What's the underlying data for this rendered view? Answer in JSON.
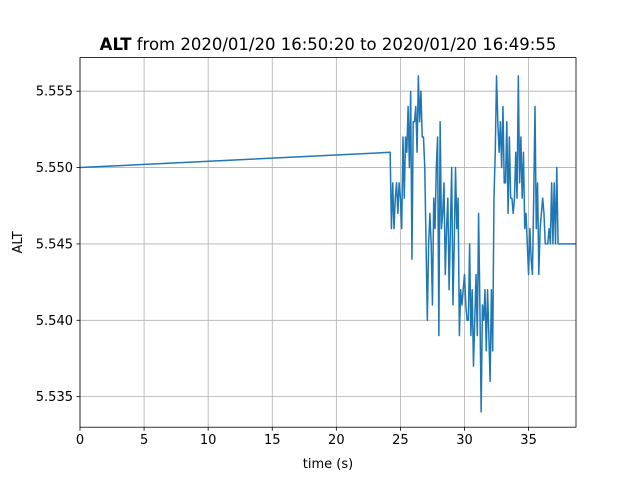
{
  "chart_data": {
    "type": "line",
    "title_bold": "ALT",
    "title_rest": " from 2020/01/20 16:50:20 to 2020/01/20 16:49:55",
    "xlabel": "time (s)",
    "ylabel": "ALT",
    "xlim": [
      0,
      38.7
    ],
    "ylim": [
      5.533,
      5.5572
    ],
    "xticks": [
      0,
      5,
      10,
      15,
      20,
      25,
      30,
      35
    ],
    "xtick_labels": [
      "0",
      "5",
      "10",
      "15",
      "20",
      "25",
      "30",
      "35"
    ],
    "yticks": [
      5.535,
      5.54,
      5.545,
      5.55,
      5.555
    ],
    "ytick_labels": [
      "5.535",
      "5.540",
      "5.545",
      "5.550",
      "5.555"
    ],
    "grid": true,
    "line_color": "#1f77b4",
    "series": [
      {
        "x": [
          0,
          24.2,
          24.3,
          24.4,
          24.5,
          24.6,
          24.7,
          24.8,
          24.9,
          25.0,
          25.1,
          25.2,
          25.3,
          25.4,
          25.5,
          25.6,
          25.7,
          25.8,
          25.9,
          26.0,
          26.1,
          26.2,
          26.3,
          26.4,
          26.5,
          26.6,
          26.7,
          26.8,
          26.9,
          27.0,
          27.1,
          27.2,
          27.3,
          27.4,
          27.5,
          27.6,
          27.7,
          27.8,
          27.9,
          28.0,
          28.1,
          28.2,
          28.3,
          28.4,
          28.5,
          28.6,
          28.7,
          28.8,
          28.9,
          29.0,
          29.1,
          29.2,
          29.3,
          29.4,
          29.5,
          29.6,
          29.7,
          29.8,
          29.9,
          30.0,
          30.1,
          30.2,
          30.3,
          30.4,
          30.5,
          30.6,
          30.7,
          30.8,
          30.9,
          31.0,
          31.1,
          31.2,
          31.3,
          31.4,
          31.5,
          31.6,
          31.7,
          31.8,
          31.9,
          32.0,
          32.1,
          32.2,
          32.3,
          32.4,
          32.5,
          32.6,
          32.7,
          32.8,
          32.9,
          33.0,
          33.1,
          33.2,
          33.3,
          33.4,
          33.5,
          33.6,
          33.7,
          33.8,
          33.9,
          34.0,
          34.1,
          34.2,
          34.3,
          34.4,
          34.5,
          34.6,
          34.7,
          34.8,
          34.9,
          35.0,
          35.1,
          35.2,
          35.3,
          35.4,
          35.5,
          35.6,
          35.7,
          35.8,
          35.9,
          36.0,
          36.1,
          36.2,
          36.3,
          36.4,
          36.5,
          36.6,
          36.7,
          36.8,
          36.9,
          37.0,
          37.1,
          37.2,
          37.3,
          37.4,
          37.5,
          37.6,
          37.7,
          37.8,
          37.9,
          38.0,
          38.1,
          38.2,
          38.3,
          38.4,
          38.5,
          38.6,
          38.7
        ],
        "y": [
          5.55,
          5.551,
          5.546,
          5.549,
          5.546,
          5.548,
          5.549,
          5.547,
          5.549,
          5.548,
          5.546,
          5.552,
          5.548,
          5.552,
          5.551,
          5.554,
          5.55,
          5.555,
          5.544,
          5.553,
          5.553,
          5.554,
          5.551,
          5.556,
          5.553,
          5.555,
          5.552,
          5.552,
          5.55,
          5.545,
          5.54,
          5.545,
          5.547,
          5.545,
          5.541,
          5.548,
          5.546,
          5.55,
          5.552,
          5.539,
          5.553,
          5.546,
          5.547,
          5.549,
          5.543,
          5.546,
          5.548,
          5.542,
          5.546,
          5.55,
          5.541,
          5.545,
          5.55,
          5.546,
          5.548,
          5.539,
          5.542,
          5.541,
          5.542,
          5.543,
          5.541,
          5.54,
          5.54,
          5.545,
          5.539,
          5.542,
          5.537,
          5.54,
          5.543,
          5.539,
          5.547,
          5.541,
          5.534,
          5.541,
          5.54,
          5.542,
          5.538,
          5.542,
          5.539,
          5.536,
          5.542,
          5.538,
          5.548,
          5.551,
          5.556,
          5.553,
          5.551,
          5.553,
          5.55,
          5.554,
          5.549,
          5.549,
          5.553,
          5.547,
          5.552,
          5.548,
          5.548,
          5.547,
          5.548,
          5.551,
          5.548,
          5.556,
          5.549,
          5.552,
          5.548,
          5.551,
          5.546,
          5.547,
          5.545,
          5.543,
          5.546,
          5.544,
          5.543,
          5.548,
          5.554,
          5.546,
          5.549,
          5.543,
          5.546,
          5.547,
          5.548,
          5.547,
          5.545,
          5.545,
          5.545,
          5.546,
          5.545,
          5.549,
          5.545,
          5.549,
          5.545,
          5.55,
          5.545,
          5.545,
          5.545,
          5.545,
          5.545,
          5.545,
          5.545,
          5.545,
          5.545,
          5.545,
          5.545,
          5.545,
          5.545,
          5.545,
          5.545
        ]
      }
    ]
  }
}
